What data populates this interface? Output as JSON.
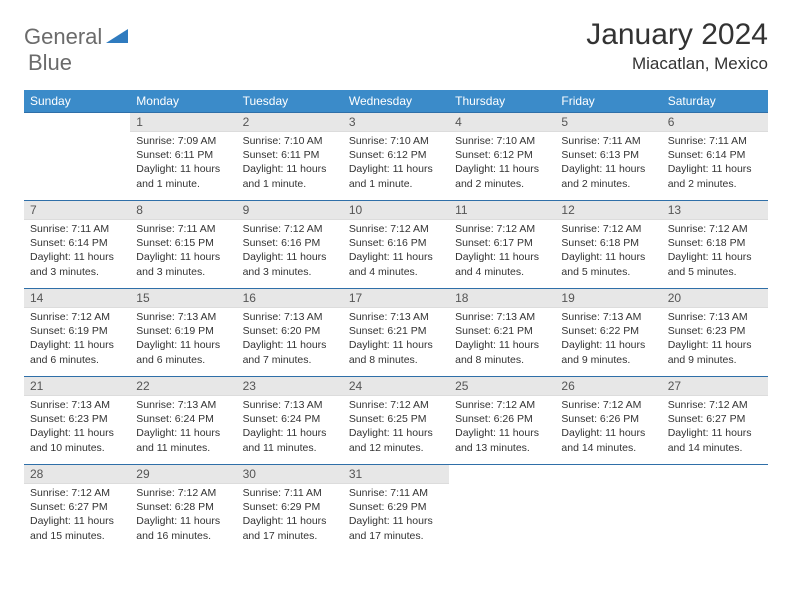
{
  "brand": {
    "word1": "General",
    "word2": "Blue",
    "logo_color": "#2f7bbf",
    "text_color": "#6b6b6b"
  },
  "title": "January 2024",
  "location": "Miacatlan, Mexico",
  "colors": {
    "header_bg": "#3b8bc9",
    "header_text": "#ffffff",
    "daynum_bg": "#e7e7e7",
    "cell_border": "#2f6fa8",
    "body_text": "#333333"
  },
  "day_headers": [
    "Sunday",
    "Monday",
    "Tuesday",
    "Wednesday",
    "Thursday",
    "Friday",
    "Saturday"
  ],
  "weeks": [
    [
      null,
      {
        "n": "1",
        "sr": "7:09 AM",
        "ss": "6:11 PM",
        "dl": "11 hours and 1 minute."
      },
      {
        "n": "2",
        "sr": "7:10 AM",
        "ss": "6:11 PM",
        "dl": "11 hours and 1 minute."
      },
      {
        "n": "3",
        "sr": "7:10 AM",
        "ss": "6:12 PM",
        "dl": "11 hours and 1 minute."
      },
      {
        "n": "4",
        "sr": "7:10 AM",
        "ss": "6:12 PM",
        "dl": "11 hours and 2 minutes."
      },
      {
        "n": "5",
        "sr": "7:11 AM",
        "ss": "6:13 PM",
        "dl": "11 hours and 2 minutes."
      },
      {
        "n": "6",
        "sr": "7:11 AM",
        "ss": "6:14 PM",
        "dl": "11 hours and 2 minutes."
      }
    ],
    [
      {
        "n": "7",
        "sr": "7:11 AM",
        "ss": "6:14 PM",
        "dl": "11 hours and 3 minutes."
      },
      {
        "n": "8",
        "sr": "7:11 AM",
        "ss": "6:15 PM",
        "dl": "11 hours and 3 minutes."
      },
      {
        "n": "9",
        "sr": "7:12 AM",
        "ss": "6:16 PM",
        "dl": "11 hours and 3 minutes."
      },
      {
        "n": "10",
        "sr": "7:12 AM",
        "ss": "6:16 PM",
        "dl": "11 hours and 4 minutes."
      },
      {
        "n": "11",
        "sr": "7:12 AM",
        "ss": "6:17 PM",
        "dl": "11 hours and 4 minutes."
      },
      {
        "n": "12",
        "sr": "7:12 AM",
        "ss": "6:18 PM",
        "dl": "11 hours and 5 minutes."
      },
      {
        "n": "13",
        "sr": "7:12 AM",
        "ss": "6:18 PM",
        "dl": "11 hours and 5 minutes."
      }
    ],
    [
      {
        "n": "14",
        "sr": "7:12 AM",
        "ss": "6:19 PM",
        "dl": "11 hours and 6 minutes."
      },
      {
        "n": "15",
        "sr": "7:13 AM",
        "ss": "6:19 PM",
        "dl": "11 hours and 6 minutes."
      },
      {
        "n": "16",
        "sr": "7:13 AM",
        "ss": "6:20 PM",
        "dl": "11 hours and 7 minutes."
      },
      {
        "n": "17",
        "sr": "7:13 AM",
        "ss": "6:21 PM",
        "dl": "11 hours and 8 minutes."
      },
      {
        "n": "18",
        "sr": "7:13 AM",
        "ss": "6:21 PM",
        "dl": "11 hours and 8 minutes."
      },
      {
        "n": "19",
        "sr": "7:13 AM",
        "ss": "6:22 PM",
        "dl": "11 hours and 9 minutes."
      },
      {
        "n": "20",
        "sr": "7:13 AM",
        "ss": "6:23 PM",
        "dl": "11 hours and 9 minutes."
      }
    ],
    [
      {
        "n": "21",
        "sr": "7:13 AM",
        "ss": "6:23 PM",
        "dl": "11 hours and 10 minutes."
      },
      {
        "n": "22",
        "sr": "7:13 AM",
        "ss": "6:24 PM",
        "dl": "11 hours and 11 minutes."
      },
      {
        "n": "23",
        "sr": "7:13 AM",
        "ss": "6:24 PM",
        "dl": "11 hours and 11 minutes."
      },
      {
        "n": "24",
        "sr": "7:12 AM",
        "ss": "6:25 PM",
        "dl": "11 hours and 12 minutes."
      },
      {
        "n": "25",
        "sr": "7:12 AM",
        "ss": "6:26 PM",
        "dl": "11 hours and 13 minutes."
      },
      {
        "n": "26",
        "sr": "7:12 AM",
        "ss": "6:26 PM",
        "dl": "11 hours and 14 minutes."
      },
      {
        "n": "27",
        "sr": "7:12 AM",
        "ss": "6:27 PM",
        "dl": "11 hours and 14 minutes."
      }
    ],
    [
      {
        "n": "28",
        "sr": "7:12 AM",
        "ss": "6:27 PM",
        "dl": "11 hours and 15 minutes."
      },
      {
        "n": "29",
        "sr": "7:12 AM",
        "ss": "6:28 PM",
        "dl": "11 hours and 16 minutes."
      },
      {
        "n": "30",
        "sr": "7:11 AM",
        "ss": "6:29 PM",
        "dl": "11 hours and 17 minutes."
      },
      {
        "n": "31",
        "sr": "7:11 AM",
        "ss": "6:29 PM",
        "dl": "11 hours and 17 minutes."
      },
      null,
      null,
      null
    ]
  ],
  "labels": {
    "sunrise": "Sunrise:",
    "sunset": "Sunset:",
    "daylight": "Daylight:"
  }
}
